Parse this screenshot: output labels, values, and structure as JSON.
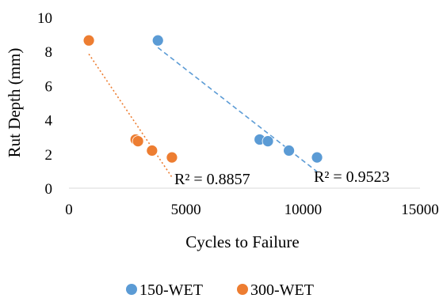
{
  "chart_data": {
    "type": "scatter",
    "xlabel": "Cycles to Failure",
    "ylabel": "Rut Depth (mm)",
    "xlim": [
      0,
      15000
    ],
    "ylim": [
      0,
      10
    ],
    "x_ticks": [
      "0",
      "5000",
      "10000",
      "15000"
    ],
    "y_ticks": [
      "0",
      "2",
      "4",
      "6",
      "8",
      "10"
    ],
    "grid": false,
    "legend_position": "bottom",
    "series": [
      {
        "name": "150-WET",
        "color": "#5b9bd5",
        "points": [
          [
            3800,
            8.65
          ],
          [
            8150,
            2.85
          ],
          [
            8500,
            2.75
          ],
          [
            9400,
            2.2
          ],
          [
            10600,
            1.8
          ]
        ],
        "trendline": {
          "style": "dashed",
          "x_range": [
            3800,
            10600
          ],
          "r2_label": "R² = 0.9523"
        }
      },
      {
        "name": "300-WET",
        "color": "#ed7d31",
        "points": [
          [
            850,
            8.65
          ],
          [
            2850,
            2.85
          ],
          [
            2950,
            2.75
          ],
          [
            3550,
            2.2
          ],
          [
            4400,
            1.8
          ]
        ],
        "trendline": {
          "style": "dotted",
          "x_range": [
            850,
            4400
          ],
          "r2_label": "R² = 0.8857"
        }
      }
    ]
  }
}
